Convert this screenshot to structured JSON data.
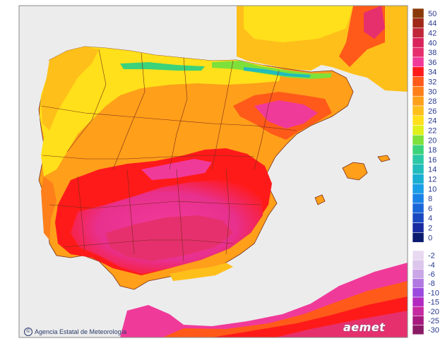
{
  "map": {
    "credit": "Agencia Estatal de Meteorología",
    "brand": "aemet",
    "colors": {
      "sea": "#ececec",
      "frame": "#888888",
      "border": "#7a2a1a"
    }
  },
  "legend": {
    "positive": [
      {
        "label": "50",
        "color": "#8a3a0a"
      },
      {
        "label": "44",
        "color": "#a02818"
      },
      {
        "label": "42",
        "color": "#c0283a"
      },
      {
        "label": "40",
        "color": "#d8245a"
      },
      {
        "label": "38",
        "color": "#e6306e"
      },
      {
        "label": "36",
        "color": "#f03a9a"
      },
      {
        "label": "34",
        "color": "#ff1a1a"
      },
      {
        "label": "32",
        "color": "#ff5a1a"
      },
      {
        "label": "30",
        "color": "#ff7f1a"
      },
      {
        "label": "28",
        "color": "#ff9f1a"
      },
      {
        "label": "26",
        "color": "#ffbf1a"
      },
      {
        "label": "24",
        "color": "#ffe01a"
      },
      {
        "label": "22",
        "color": "#dff01a"
      },
      {
        "label": "20",
        "color": "#7ee03a"
      },
      {
        "label": "18",
        "color": "#3ad27a"
      },
      {
        "label": "16",
        "color": "#2ac8a6"
      },
      {
        "label": "14",
        "color": "#22bcbc"
      },
      {
        "label": "12",
        "color": "#1aaed2"
      },
      {
        "label": "10",
        "color": "#1a9ee6"
      },
      {
        "label": "8",
        "color": "#1a82e6"
      },
      {
        "label": "6",
        "color": "#1a66d8"
      },
      {
        "label": "4",
        "color": "#1a48c0"
      },
      {
        "label": "2",
        "color": "#1a2aa0"
      },
      {
        "label": "0",
        "color": "#0a1a6e"
      }
    ],
    "negative": [
      {
        "label": "-2",
        "color": "#e8d8f0"
      },
      {
        "label": "-4",
        "color": "#dcc6ec"
      },
      {
        "label": "-6",
        "color": "#c9a6e6"
      },
      {
        "label": "-8",
        "color": "#b078e0"
      },
      {
        "label": "-10",
        "color": "#9a4ade"
      },
      {
        "label": "-15",
        "color": "#b22ac0"
      },
      {
        "label": "-20",
        "color": "#c62aa0"
      },
      {
        "label": "-25",
        "color": "#a61a7e"
      },
      {
        "label": "-30",
        "color": "#8a1a66"
      }
    ]
  }
}
